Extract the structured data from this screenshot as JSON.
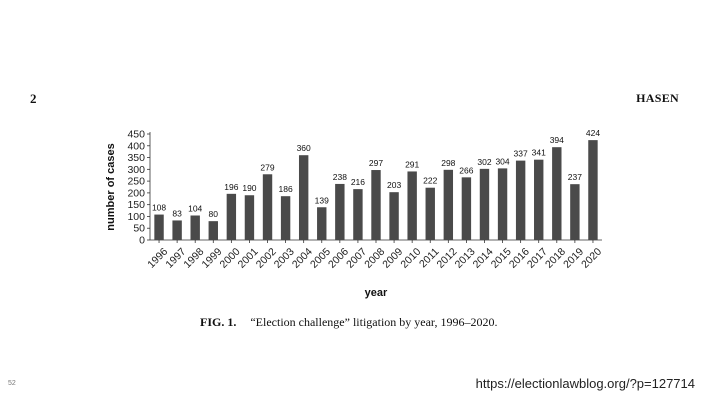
{
  "header": {
    "page_number": "2",
    "author": "HASEN"
  },
  "figure": {
    "label": "FIG. 1.",
    "caption": "“Election challenge” litigation by year, 1996–2020."
  },
  "footer": {
    "slide_number": "52",
    "source_url": "https://electionlawblog.org/?p=127714"
  },
  "chart_data": {
    "type": "bar",
    "categories": [
      "1996",
      "1997",
      "1998",
      "1999",
      "2000",
      "2001",
      "2002",
      "2003",
      "2004",
      "2005",
      "2006",
      "2007",
      "2008",
      "2009",
      "2010",
      "2011",
      "2012",
      "2013",
      "2014",
      "2015",
      "2016",
      "2017",
      "2018",
      "2019",
      "2020"
    ],
    "values": [
      108,
      83,
      104,
      80,
      196,
      190,
      279,
      186,
      360,
      139,
      238,
      216,
      297,
      203,
      291,
      222,
      298,
      266,
      302,
      304,
      337,
      341,
      394,
      237,
      424
    ],
    "xlabel": "year",
    "ylabel": "number of cases",
    "ylim": [
      0,
      450
    ],
    "yticks": [
      0,
      50,
      100,
      150,
      200,
      250,
      300,
      350,
      400,
      450
    ],
    "bar_color": "#4a4a4a",
    "grid": false
  }
}
